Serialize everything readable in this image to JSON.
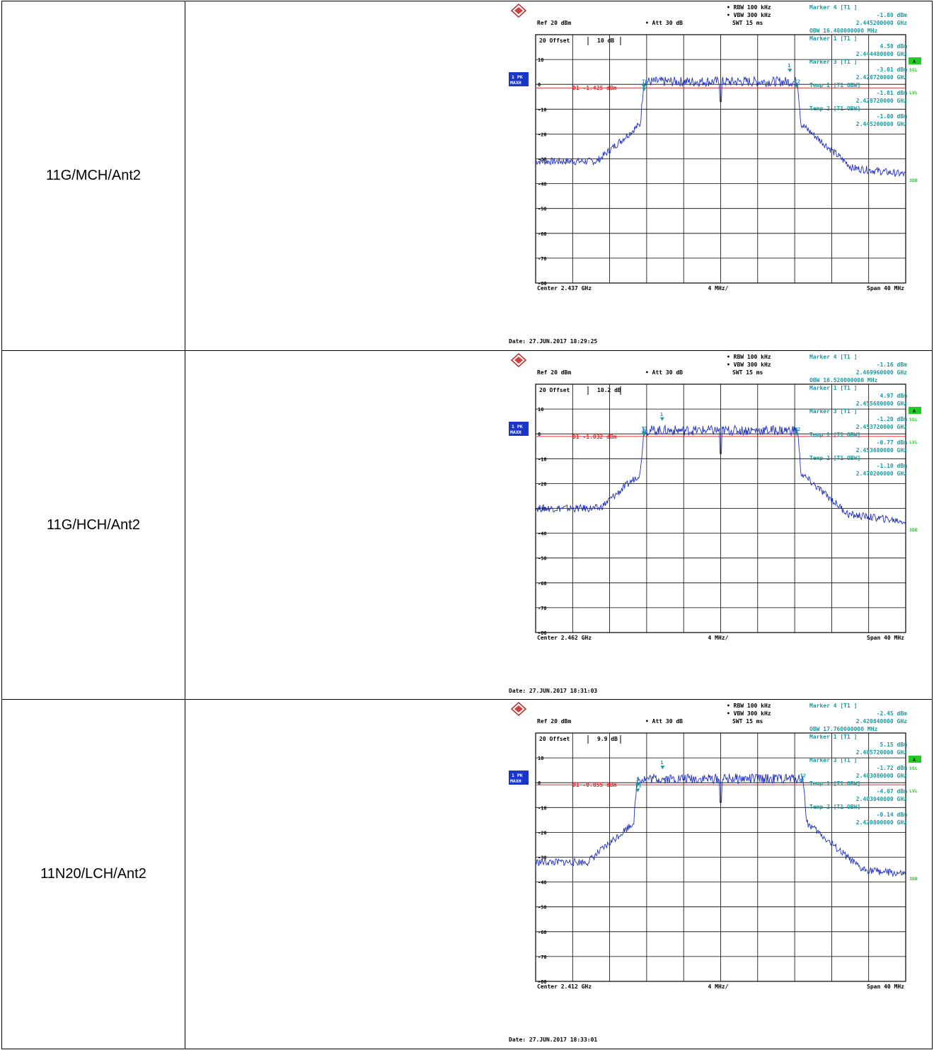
{
  "rows": [
    {
      "label": "11G/MCH/Ant2",
      "chart_data": {
        "type": "line",
        "header": {
          "rbw": "RBW 100 kHz",
          "vbw": "VBW 300 kHz",
          "swt": "SWT 15 ms",
          "ref": "Ref  20 dBm",
          "att": "Att  30 dB",
          "offset_prefix": "20 Offset",
          "offset": "10 dB"
        },
        "trace_badge": [
          "1 PK",
          "MAXH"
        ],
        "side_labels": [
          "A",
          "SGL",
          "LVL",
          "3DB"
        ],
        "display_line": "D1 -1.425 dBm",
        "display_line_level": -1.425,
        "markers": [
          {
            "lines": [
              "Marker 4 [T1 ]",
              "-1.80 dBm",
              "2.445200000 GHz"
            ]
          },
          {
            "lines": [
              "OBW 16.480000000 MHz",
              "Marker 1 [T1 ]",
              "4.58 dBm",
              "2.444480000 GHz"
            ]
          },
          {
            "lines": [
              "Marker 3 [T1 ]",
              "-3.01 dBm",
              "2.428720000 GHz"
            ]
          },
          {
            "lines": [
              "Temp 1 [T1 OBW]",
              "-1.81 dBm",
              "2.428720000 GHz"
            ]
          },
          {
            "lines": [
              "Temp 2 [T1 OBW]",
              "-1.80 dBm",
              "2.445200000 GHz"
            ]
          }
        ],
        "marker_points": [
          {
            "label": "1",
            "x": 2.44448,
            "y": 4.58
          },
          {
            "label": "3",
            "x": 2.42872,
            "y": -3.01
          },
          {
            "label": "T1",
            "x": 2.42872,
            "y": -1.81
          },
          {
            "label": "T2",
            "x": 2.4452,
            "y": -1.8
          }
        ],
        "center_ghz": 2.437,
        "span_mhz": 40,
        "ylim": [
          -80,
          20
        ],
        "yticks": [
          10,
          0,
          -10,
          -20,
          -30,
          -40,
          -50,
          -60,
          -70,
          -80
        ],
        "ytick_labels": [
          "10",
          "0",
          "-10",
          "-20",
          "-30",
          "-40",
          "-50",
          "-60",
          "-70",
          "-80"
        ],
        "x_center_label": "Center  2.437 GHz",
        "x_div_label": "4 MHz/",
        "x_span_label": "Span  40 MHz",
        "date": "Date: 27.JUN.2017  18:29:25",
        "trace_profile": {
          "edge_left_mhz": -8.3,
          "edge_right_mhz": 8.3,
          "plateau_db": 1.5,
          "floor_db": -31,
          "notch_mhz": 0,
          "notch_db": -7
        }
      }
    },
    {
      "label": "11G/HCH/Ant2",
      "chart_data": {
        "type": "line",
        "header": {
          "rbw": "RBW 100 kHz",
          "vbw": "VBW 300 kHz",
          "swt": "SWT 15 ms",
          "ref": "Ref  20 dBm",
          "att": "Att  30 dB",
          "offset_prefix": "20 Offset",
          "offset": "10.2 dB"
        },
        "trace_badge": [
          "1 PK",
          "MAXH"
        ],
        "side_labels": [
          "A",
          "SGL",
          "LVL",
          "3DB"
        ],
        "display_line": "D1 -1.032 dBm",
        "display_line_level": -1.032,
        "markers": [
          {
            "lines": [
              "Marker 4 [T1 ]",
              "-1.16 dBm",
              "2.469960000 GHz"
            ]
          },
          {
            "lines": [
              "OBW 16.520000000 MHz",
              "Marker 1 [T1 ]",
              "4.97 dBm",
              "2.455680000 GHz"
            ]
          },
          {
            "lines": [
              "Marker 3 [T1 ]",
              "-1.20 dBm",
              "2.453720000 GHz"
            ]
          },
          {
            "lines": [
              "Temp 1 [T1 OBW]",
              "-0.77 dBm",
              "2.453680000 GHz"
            ]
          },
          {
            "lines": [
              "Temp 2 [T1 OBW]",
              "-1.10 dBm",
              "2.470200000 GHz"
            ]
          }
        ],
        "marker_points": [
          {
            "label": "1",
            "x": 2.45568,
            "y": 4.97
          },
          {
            "label": "3",
            "x": 2.45372,
            "y": -1.2
          },
          {
            "label": "T1",
            "x": 2.45368,
            "y": -0.77
          },
          {
            "label": "T2",
            "x": 2.4702,
            "y": -1.1
          }
        ],
        "center_ghz": 2.462,
        "span_mhz": 40,
        "ylim": [
          -80,
          20
        ],
        "yticks": [
          10,
          0,
          -10,
          -20,
          -30,
          -40,
          -50,
          -60,
          -70,
          -80
        ],
        "ytick_labels": [
          "10",
          "0",
          "-10",
          "-20",
          "-30",
          "-40",
          "-50",
          "-60",
          "-70",
          "-80"
        ],
        "x_center_label": "Center  2.462 GHz",
        "x_div_label": "4 MHz/",
        "x_span_label": "Span  40 MHz",
        "date": "Date: 27.JUN.2017  18:31:03",
        "trace_profile": {
          "edge_left_mhz": -8.3,
          "edge_right_mhz": 8.3,
          "plateau_db": 1.8,
          "floor_db": -30,
          "notch_mhz": 0,
          "notch_db": -8
        }
      }
    },
    {
      "label": "11N20/LCH/Ant2",
      "chart_data": {
        "type": "line",
        "header": {
          "rbw": "RBW 100 kHz",
          "vbw": "VBW 300 kHz",
          "swt": "SWT 15 ms",
          "ref": "Ref  20 dBm",
          "att": "Att  30 dB",
          "offset_prefix": "20 Offset",
          "offset": "9.9 dB"
        },
        "trace_badge": [
          "1 PK",
          "MAXH"
        ],
        "side_labels": [
          "A",
          "SGL",
          "LVL",
          "3DB"
        ],
        "display_line": "D1 -0.855 dBm",
        "display_line_level": -0.855,
        "markers": [
          {
            "lines": [
              "Marker 4 [T1 ]",
              "-2.45 dBm",
              "2.420840000 GHz"
            ]
          },
          {
            "lines": [
              "OBW 17.760000000 MHz",
              "Marker 1 [T1 ]",
              "5.15 dBm",
              "2.405720000 GHz"
            ]
          },
          {
            "lines": [
              "Marker 3 [T1 ]",
              "-1.72 dBm",
              "2.403080000 GHz"
            ]
          },
          {
            "lines": [
              "Temp 1 [T1 OBW]",
              "-4.07 dBm",
              "2.403040000 GHz"
            ]
          },
          {
            "lines": [
              "Temp 2 [T1 OBW]",
              "-0.14 dBm",
              "2.420800000 GHz"
            ]
          }
        ],
        "marker_points": [
          {
            "label": "1",
            "x": 2.40572,
            "y": 5.15
          },
          {
            "label": "3",
            "x": 2.40308,
            "y": -1.72
          },
          {
            "label": "T1",
            "x": 2.40304,
            "y": -4.07
          },
          {
            "label": "T2",
            "x": 2.4208,
            "y": -0.14
          }
        ],
        "center_ghz": 2.412,
        "span_mhz": 40,
        "ylim": [
          -80,
          20
        ],
        "yticks": [
          10,
          0,
          -10,
          -20,
          -30,
          -40,
          -50,
          -60,
          -70,
          -80
        ],
        "ytick_labels": [
          "10",
          "0",
          "-10",
          "-20",
          "-30",
          "-40",
          "-50",
          "-60",
          "-70",
          "-80"
        ],
        "x_center_label": "Center  2.412 GHz",
        "x_div_label": "4 MHz/",
        "x_span_label": "Span  40 MHz",
        "date": "Date: 27.JUN.2017  18:33:01",
        "trace_profile": {
          "edge_left_mhz": -9.0,
          "edge_right_mhz": 8.9,
          "plateau_db": 2.0,
          "floor_db": -32,
          "notch_mhz": 0,
          "notch_db": -8
        }
      }
    }
  ],
  "colors": {
    "trace": "#1f2fbf",
    "grid": "#000000",
    "limit": "#e03030",
    "marker": "#1a9aa0",
    "badge": "#1a35c8",
    "side": "#22cc22"
  }
}
